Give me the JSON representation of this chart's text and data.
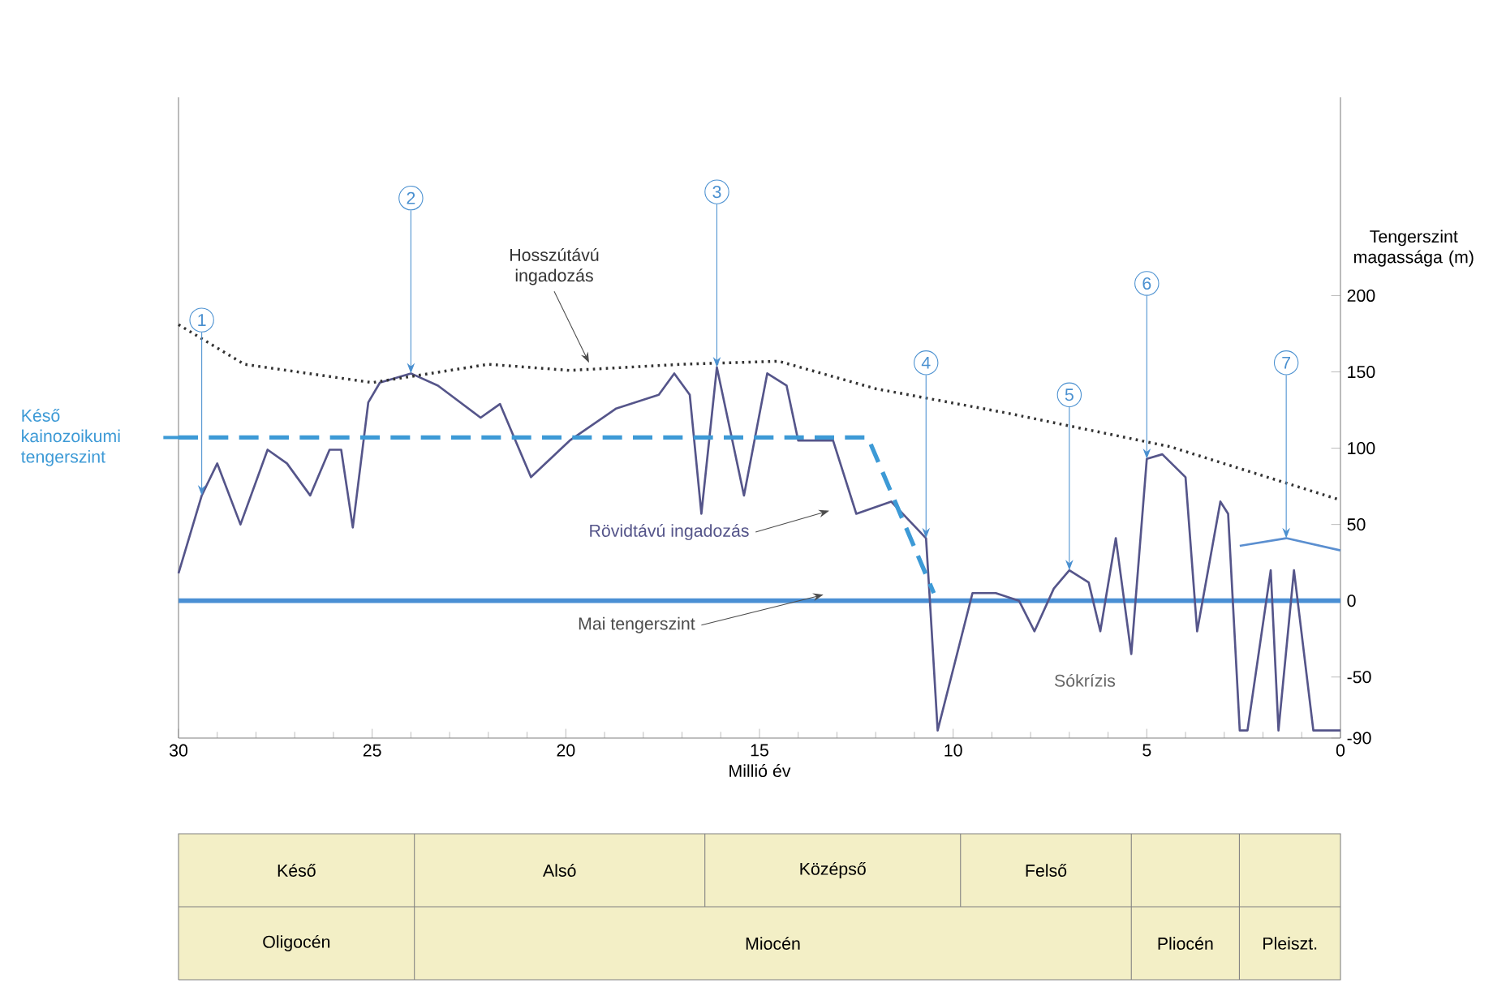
{
  "chart_data": [
    {
      "type": "line",
      "xlabel": "Millió év",
      "ylabel": "Tengerszint magassága (m)",
      "xlim": [
        30,
        0
      ],
      "xticks": [
        30,
        25,
        20,
        15,
        10,
        5,
        0
      ],
      "ylim": [
        -90,
        330
      ],
      "yticks": [
        200,
        150,
        100,
        50,
        0,
        -50,
        -90
      ],
      "series": [
        {
          "name": "Rövidtávú ingadozás",
          "color": "#55558a",
          "line_style": "solid",
          "x": [
            30.0,
            29.4,
            29.0,
            28.4,
            27.7,
            27.2,
            26.6,
            26.1,
            25.8,
            25.5,
            25.1,
            24.8,
            24.0,
            23.3,
            22.2,
            21.7,
            21.3,
            20.9,
            19.9,
            18.7,
            17.6,
            17.2,
            16.8,
            16.5,
            16.1,
            15.4,
            14.8,
            14.3,
            14.0,
            13.1,
            12.5,
            11.6,
            10.7,
            10.6,
            10.4,
            9.5,
            8.9,
            8.3,
            7.9,
            7.4,
            7.0,
            6.5,
            6.2,
            5.8,
            5.4,
            5.0,
            4.6,
            4.0,
            3.7,
            3.1,
            2.9,
            2.6,
            2.4,
            1.8,
            1.6,
            1.2,
            0.7,
            0.0
          ],
          "values": [
            18,
            69,
            90,
            50,
            99,
            90,
            69,
            99,
            99,
            48,
            130,
            143,
            149,
            141,
            120,
            129,
            105,
            81,
            105,
            126,
            135,
            149,
            135,
            57,
            153,
            69,
            149,
            141,
            105,
            105,
            57,
            65,
            41,
            0,
            -85,
            5,
            5,
            0,
            -20,
            8,
            20,
            12,
            -20,
            41,
            -35,
            93,
            96,
            81,
            -20,
            65,
            57,
            -85,
            -85,
            20,
            -85,
            20,
            -85,
            -85
          ]
        },
        {
          "name": "Hosszútávú ingadozás",
          "color": "#333333",
          "line_style": "dotted",
          "x": [
            30.0,
            28.3,
            25.0,
            22.0,
            19.9,
            17.0,
            14.5,
            12.0,
            8.6,
            4.4,
            0.0
          ],
          "values": [
            181,
            155,
            143,
            155,
            151,
            155,
            157,
            139,
            123,
            101,
            66
          ]
        },
        {
          "name": "Késő kainozoikumi tengerszint",
          "color": "#3d9ad6",
          "line_style": "dashed",
          "x": [
            30.0,
            12.2,
            10.5
          ],
          "values": [
            107,
            107,
            5
          ]
        },
        {
          "color": "#5b8fd0",
          "line_style": "solid",
          "x": [
            2.6,
            1.4,
            0.0
          ],
          "values": [
            36,
            41,
            33
          ]
        }
      ],
      "ref_lines": [
        {
          "axis": "y",
          "value": 0,
          "label": "Mai tengerszint",
          "color": "#4a8fd4"
        }
      ],
      "annotations": [
        {
          "text": "1",
          "x": 29.4,
          "y": 69
        },
        {
          "text": "2",
          "x": 24.0,
          "y": 149
        },
        {
          "text": "3",
          "x": 16.1,
          "y": 153
        },
        {
          "text": "4",
          "x": 10.7,
          "y": 41
        },
        {
          "text": "5",
          "x": 7.0,
          "y": 20
        },
        {
          "text": "6",
          "x": 5.0,
          "y": 93
        },
        {
          "text": "7",
          "x": 1.4,
          "y": 41
        },
        "Sókrízis"
      ]
    },
    {
      "type": "other",
      "annotations": [
        "Késő",
        "Alsó",
        "Középső",
        "Felső",
        "Oligocén",
        "Miocén",
        "Pliocén",
        "Pleiszt."
      ]
    }
  ]
}
